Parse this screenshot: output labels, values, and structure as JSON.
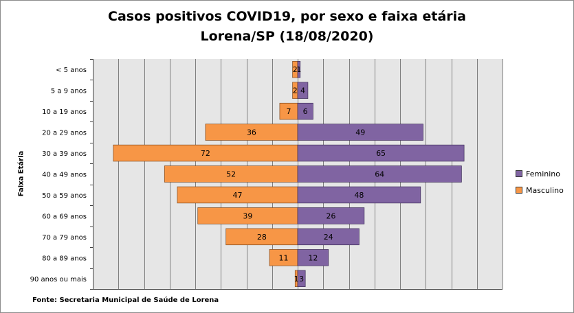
{
  "title_line1": "Casos positivos COVID19, por sexo e faixa etária",
  "title_line2": "Lorena/SP (18/08/2020)",
  "source": "Fonte: Secretaria Municipal  de Saúde de Lorena",
  "colors": {
    "masculino": "#f79646",
    "feminino": "#8064a2",
    "plot_bg": "#e6e6e6",
    "grid": "#7f7f7f"
  },
  "chart_data": {
    "type": "bar",
    "orientation": "horizontal",
    "layout": "population-pyramid",
    "ylabel": "Faixa Etária",
    "categories": [
      "< 5 anos",
      "5 a 9 anos",
      "10 a 19 anos",
      "20 a 29 anos",
      "30 a 39 anos",
      "40 a 49 anos",
      "50 a 59 anos",
      "60 a 69 anos",
      "70 a 79 anos",
      "80 a 89 anos",
      "90 anos ou mais"
    ],
    "series": [
      {
        "name": "Masculino",
        "side": "left",
        "values": [
          2,
          2,
          7,
          36,
          72,
          52,
          47,
          39,
          28,
          11,
          1
        ]
      },
      {
        "name": "Feminino",
        "side": "right",
        "values": [
          1,
          4,
          6,
          49,
          65,
          64,
          48,
          26,
          24,
          12,
          3
        ]
      }
    ],
    "xlim": [
      -80,
      80
    ],
    "grid": true,
    "legend": "right",
    "legend_order": [
      "Feminino",
      "Masculino"
    ]
  }
}
